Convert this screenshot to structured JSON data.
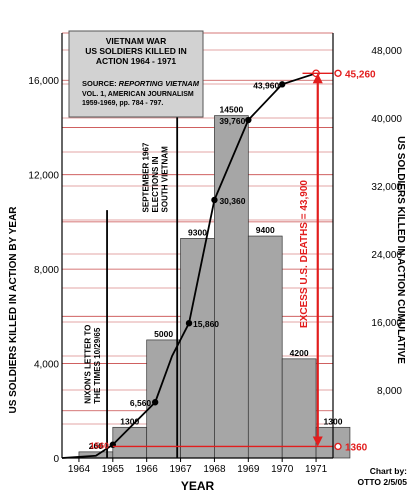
{
  "chart_data": {
    "type": "bar",
    "categories": [
      "1964",
      "1965",
      "1966",
      "1967",
      "1968",
      "1969",
      "1970",
      "1971"
    ],
    "series": [
      {
        "name": "US SOLDIERS KILLED IN ACTION BY YEAR",
        "values": [
          260,
          1300,
          5000,
          9300,
          14500,
          9400,
          4200,
          1300
        ],
        "labels": [
          "260",
          "1300",
          "5000",
          "9300",
          "14500",
          "9400",
          "4200",
          "1300"
        ]
      },
      {
        "name": "US SOLDIERS KILLED IN ACTION CUMULATIVE",
        "kind": "line",
        "points": [
          {
            "x": 1964.0,
            "y": 0
          },
          {
            "x": 1965.0,
            "y": 260
          },
          {
            "x": 1965.5,
            "y": 1560,
            "label": "1560"
          },
          {
            "x": 1966.75,
            "y": 6560,
            "label": "6,560"
          },
          {
            "x": 1967.25,
            "y": 12000
          },
          {
            "x": 1967.75,
            "y": 15860,
            "label": "15,860"
          },
          {
            "x": 1968.5,
            "y": 30360,
            "label": "30,360"
          },
          {
            "x": 1969.5,
            "y": 39760,
            "label": "39,760"
          },
          {
            "x": 1970.5,
            "y": 43960,
            "label": "43,960"
          },
          {
            "x": 1971.5,
            "y": 45260,
            "label": "45,260"
          }
        ]
      }
    ],
    "info_box": {
      "title_lines": [
        "VIETNAM WAR",
        "US SOLDIERS KILLED IN",
        "ACTION 1964 - 1971"
      ],
      "source_label": "SOURCE: ",
      "source_title": "REPORTING VIETNAM",
      "source_lines": [
        "VOL. 1,  AMERICAN JOURNALISM",
        "1959-1969, pp. 784 - 797."
      ]
    },
    "xlabel": "YEAR",
    "ylabel_left": "US SOLDIERS KILLED IN ACTION BY YEAR",
    "ylabel_right": "US SOLDIERS KILLED IN ACTION CUMULATIVE",
    "left_ticks": [
      "0",
      "4,000",
      "8,000",
      "12,000",
      "16,000"
    ],
    "left_ylim": [
      0,
      18000
    ],
    "right_ticks": [
      "8,000",
      "16,000",
      "24,000",
      "32,000",
      "40,000",
      "48,000"
    ],
    "right_ylim": [
      0,
      50000
    ],
    "grid": true,
    "annotations": {
      "nixon_letter": {
        "x": 1965.33,
        "lines": [
          "NIXON'S LETTER TO",
          "THE TIMES 10/29/65"
        ]
      },
      "elections": {
        "x": 1967.4,
        "lines": [
          "SEPTEMBER 1967",
          "ELECTIONS IN",
          "SOUTH VIETNAM"
        ]
      },
      "excess": {
        "label": "EXCESS U.S. DEATHS = 43,900",
        "top_value": 45260,
        "bottom_value": 1360,
        "top_label": "45,260",
        "bottom_label": "1360"
      }
    },
    "credit_lines": [
      "Chart by:",
      "OTTO 2/5/05"
    ],
    "colors": {
      "bar": "#a6a6a6",
      "grid": "#c84a4a",
      "accent": "#e21d1d",
      "line": "#000000",
      "box": "#d2d2d2"
    }
  }
}
